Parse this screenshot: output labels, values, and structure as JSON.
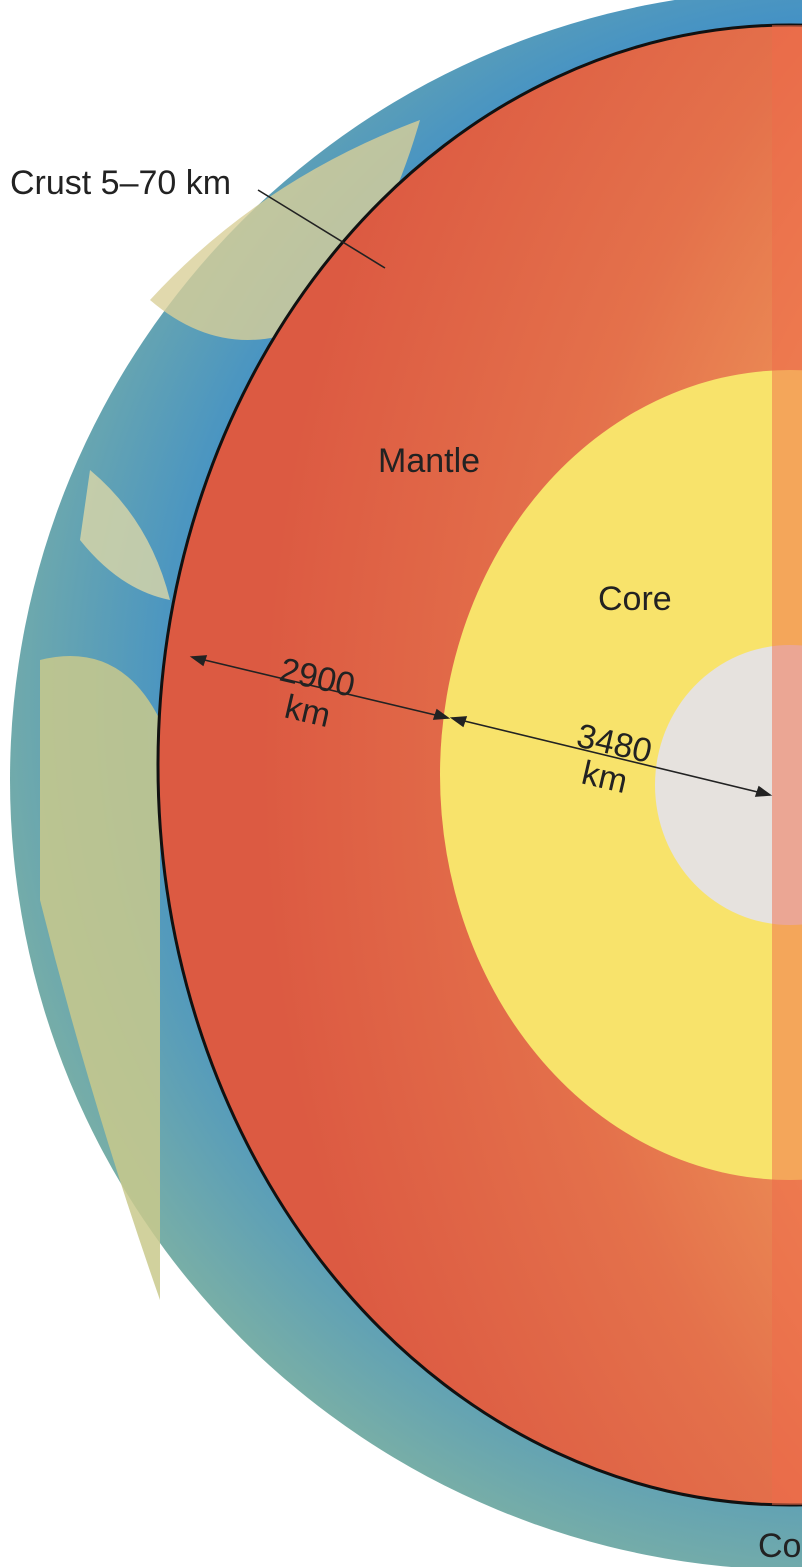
{
  "labels": {
    "crust": "Crust 5–70 km",
    "mantle": "Mantle",
    "core": "Core",
    "mantle_thickness": {
      "number": "2900",
      "unit": "km"
    },
    "core_radius": {
      "number": "3480",
      "unit": "km"
    },
    "bottom": "Co"
  }
}
